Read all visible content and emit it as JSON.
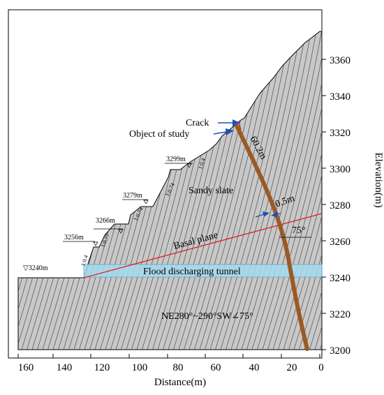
{
  "axes": {
    "x_title": "Distance(m)",
    "y_title": "Elevation(m)",
    "x_ticks": [
      "160",
      "140",
      "120",
      "100",
      "80",
      "60",
      "40",
      "20",
      "0"
    ],
    "y_ticks": [
      "3360",
      "3340",
      "3320",
      "3300",
      "3280",
      "3260",
      "3240",
      "3220",
      "3200"
    ]
  },
  "labels": {
    "crack": "Crack",
    "object_of_study": "Object of study",
    "length": "60.2m",
    "width": "0.5m",
    "sandy_slate": "Sandy slate",
    "basal_plane": "Basal plane",
    "angle": "75°",
    "tunnel": "Flood discharging tunnel",
    "attitude": "NE280°~290°SW∠75°"
  },
  "elevations": {
    "e3240": "▽3240m",
    "e3256": "3256m",
    "e3266": "3266m",
    "e3279": "3279m",
    "e3299": "3299m"
  },
  "slope_ratios": {
    "r1": "1:0.4",
    "r2": "1:0.77",
    "r3": "1:0.74",
    "r4": "1:0.74",
    "r5": "1:0.4"
  },
  "colors": {
    "rock_fill": "#c8c8c8",
    "hatch": "#3a3a3a",
    "tunnel": "#a6dbef",
    "basal_line": "#e02020",
    "column": "#9a5a25",
    "arrow": "#1f4fb8"
  }
}
